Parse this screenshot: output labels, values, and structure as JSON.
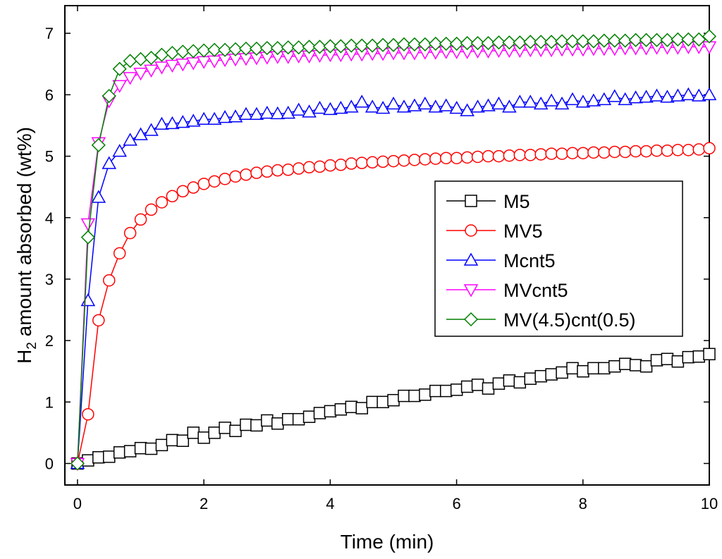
{
  "chart_data": {
    "type": "line",
    "title": "",
    "xlabel": "Time (min)",
    "ylabel_main": "H",
    "ylabel_sub": "2",
    "ylabel_rest": " amount absorbed (wt%)",
    "xlim": [
      -0.2,
      10
    ],
    "ylim": [
      -0.35,
      7.45
    ],
    "xticks": [
      0,
      2,
      4,
      6,
      8,
      10
    ],
    "yticks": [
      0,
      1,
      2,
      3,
      4,
      5,
      6,
      7
    ],
    "legend_position": "center-right",
    "x_step": 0.1667,
    "series": [
      {
        "name": "M5",
        "marker": "square",
        "color": "#000000",
        "values": [
          0.0,
          0.05,
          0.1,
          0.11,
          0.18,
          0.2,
          0.25,
          0.24,
          0.3,
          0.38,
          0.37,
          0.5,
          0.42,
          0.5,
          0.58,
          0.53,
          0.63,
          0.62,
          0.7,
          0.65,
          0.72,
          0.72,
          0.76,
          0.82,
          0.85,
          0.88,
          0.92,
          0.9,
          1.0,
          1.0,
          1.03,
          1.1,
          1.1,
          1.12,
          1.18,
          1.18,
          1.2,
          1.25,
          1.28,
          1.22,
          1.3,
          1.35,
          1.32,
          1.38,
          1.42,
          1.45,
          1.48,
          1.55,
          1.5,
          1.55,
          1.55,
          1.58,
          1.62,
          1.6,
          1.58,
          1.68,
          1.7,
          1.66,
          1.73,
          1.74,
          1.78
        ]
      },
      {
        "name": "MV5",
        "marker": "circle",
        "color": "#ff0000",
        "values": [
          0.0,
          0.8,
          2.33,
          2.98,
          3.42,
          3.75,
          3.97,
          4.13,
          4.25,
          4.35,
          4.43,
          4.49,
          4.55,
          4.59,
          4.63,
          4.67,
          4.7,
          4.73,
          4.75,
          4.77,
          4.78,
          4.8,
          4.82,
          4.83,
          4.85,
          4.86,
          4.88,
          4.89,
          4.9,
          4.91,
          4.92,
          4.93,
          4.94,
          4.95,
          4.96,
          4.97,
          4.97,
          4.98,
          4.99,
          5.0,
          5.0,
          5.01,
          5.02,
          5.02,
          5.03,
          5.04,
          5.04,
          5.05,
          5.05,
          5.06,
          5.06,
          5.07,
          5.07,
          5.08,
          5.08,
          5.09,
          5.09,
          5.1,
          5.1,
          5.11,
          5.13
        ]
      },
      {
        "name": "Mcnt5",
        "marker": "triangle-up",
        "color": "#0000ff",
        "values": [
          0.0,
          2.65,
          4.33,
          4.88,
          5.08,
          5.26,
          5.35,
          5.42,
          5.52,
          5.53,
          5.55,
          5.57,
          5.6,
          5.6,
          5.63,
          5.64,
          5.68,
          5.68,
          5.7,
          5.69,
          5.7,
          5.75,
          5.72,
          5.78,
          5.76,
          5.78,
          5.8,
          5.88,
          5.8,
          5.78,
          5.85,
          5.8,
          5.82,
          5.85,
          5.8,
          5.82,
          5.78,
          5.74,
          5.8,
          5.82,
          5.85,
          5.8,
          5.88,
          5.88,
          5.85,
          5.9,
          5.85,
          5.92,
          5.88,
          5.9,
          5.92,
          5.97,
          5.92,
          5.95,
          5.96,
          5.98,
          5.96,
          5.98,
          6.0,
          5.98,
          6.0
        ]
      },
      {
        "name": "MVcnt5",
        "marker": "triangle-down",
        "color": "#ff00ff",
        "values": [
          0.0,
          3.9,
          5.22,
          5.9,
          6.15,
          6.28,
          6.35,
          6.4,
          6.45,
          6.48,
          6.5,
          6.52,
          6.54,
          6.55,
          6.57,
          6.58,
          6.59,
          6.6,
          6.61,
          6.62,
          6.62,
          6.63,
          6.63,
          6.64,
          6.65,
          6.65,
          6.66,
          6.66,
          6.67,
          6.67,
          6.68,
          6.68,
          6.68,
          6.69,
          6.69,
          6.7,
          6.7,
          6.7,
          6.71,
          6.71,
          6.72,
          6.72,
          6.72,
          6.73,
          6.73,
          6.73,
          6.74,
          6.74,
          6.74,
          6.75,
          6.75,
          6.75,
          6.76,
          6.76,
          6.76,
          6.77,
          6.77,
          6.77,
          6.78,
          6.78,
          6.78
        ]
      },
      {
        "name": "MV(4.5)cnt(0.5)",
        "marker": "diamond",
        "color": "#008000",
        "values": [
          0.0,
          3.68,
          5.18,
          5.98,
          6.42,
          6.55,
          6.58,
          6.6,
          6.65,
          6.68,
          6.7,
          6.71,
          6.72,
          6.73,
          6.73,
          6.74,
          6.75,
          6.75,
          6.76,
          6.76,
          6.77,
          6.77,
          6.78,
          6.78,
          6.79,
          6.79,
          6.8,
          6.8,
          6.8,
          6.81,
          6.81,
          6.82,
          6.82,
          6.82,
          6.83,
          6.83,
          6.83,
          6.84,
          6.84,
          6.84,
          6.85,
          6.85,
          6.85,
          6.86,
          6.86,
          6.86,
          6.87,
          6.87,
          6.87,
          6.87,
          6.88,
          6.88,
          6.88,
          6.89,
          6.89,
          6.89,
          6.89,
          6.9,
          6.9,
          6.9,
          6.95
        ]
      }
    ]
  }
}
